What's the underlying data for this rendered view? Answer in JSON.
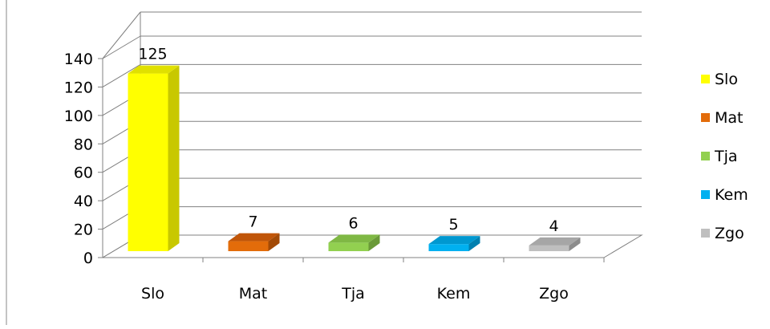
{
  "chart_data": {
    "type": "bar",
    "categories": [
      "Slo",
      "Mat",
      "Tja",
      "Kem",
      "Zgo"
    ],
    "values": [
      125,
      7,
      6,
      5,
      4
    ],
    "data_labels": [
      "125",
      "7",
      "6",
      "5",
      "4"
    ],
    "ylim": [
      0,
      140
    ],
    "yticks": [
      0,
      20,
      40,
      60,
      80,
      100,
      120,
      140
    ],
    "grid": true,
    "legend": "right",
    "colors": [
      "#ffff00",
      "#e36c0a",
      "#92d050",
      "#00b0f0",
      "#bfbfbf"
    ],
    "side_colors": [
      "#c8c800",
      "#a34a06",
      "#6a9a38",
      "#0080b0",
      "#8c8c8c"
    ],
    "top_colors": [
      "#e0e000",
      "#c05508",
      "#7fb844",
      "#0098d0",
      "#a6a6a6"
    ]
  }
}
